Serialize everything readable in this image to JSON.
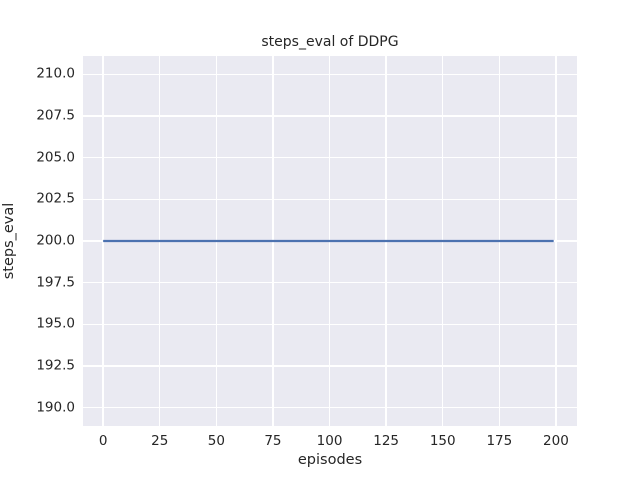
{
  "figure": {
    "background_color": "#ffffff",
    "text_color": "#262626"
  },
  "chart_data": {
    "type": "line",
    "title": "steps_eval of DDPG",
    "xlabel": "episodes",
    "ylabel": "steps_eval",
    "xlim": [
      -8.9,
      209.3
    ],
    "ylim": [
      188.9,
      211.1
    ],
    "xticks": [
      0,
      25,
      50,
      75,
      100,
      125,
      150,
      175,
      200
    ],
    "xtick_labels": [
      "0",
      "25",
      "50",
      "75",
      "100",
      "125",
      "150",
      "175",
      "200"
    ],
    "yticks": [
      190.0,
      192.5,
      195.0,
      197.5,
      200.0,
      202.5,
      205.0,
      207.5,
      210.0
    ],
    "ytick_labels": [
      "190.0",
      "192.5",
      "195.0",
      "197.5",
      "200.0",
      "202.5",
      "205.0",
      "207.5",
      "210.0"
    ],
    "grid": true,
    "legend": false,
    "plot_background_color": "#eaeaf2",
    "grid_color": "#ffffff",
    "series": [
      {
        "name": "steps_eval",
        "color": "#4c72b0",
        "line_width": 2.2,
        "x": [
          0,
          199
        ],
        "y": [
          200,
          200
        ]
      }
    ]
  }
}
